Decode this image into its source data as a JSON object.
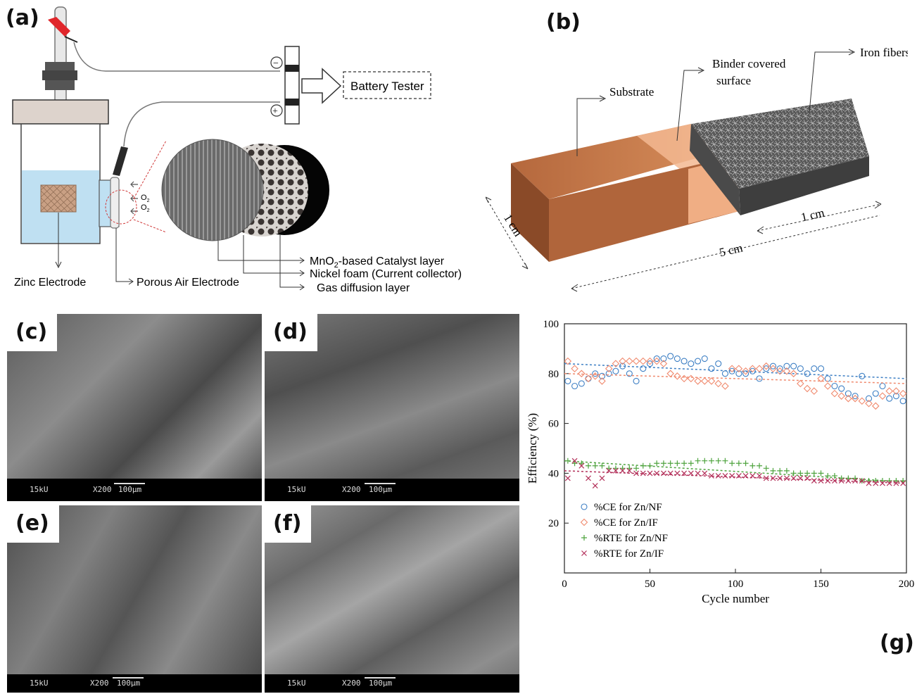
{
  "panels": {
    "a": "(a)",
    "b": "(b)",
    "c": "(c)",
    "d": "(d)",
    "e": "(e)",
    "f": "(f)",
    "g": "(g)"
  },
  "panel_a": {
    "battery_tester": "Battery Tester",
    "minus_sign": "−",
    "plus_sign": "+",
    "o2_top": "O",
    "o2_bottom": "O",
    "o2_sub": "2",
    "zinc_electrode": "Zinc Electrode",
    "porous_air_electrode": "Porous Air Electrode",
    "catalyst_layer_pre": "MnO",
    "catalyst_layer_sub": "2",
    "catalyst_layer_post": "-based Catalyst layer",
    "nickel_foam": "Nickel foam (Current collector)",
    "gas_diffusion": "Gas diffusion layer"
  },
  "panel_b": {
    "substrate": "Substrate",
    "binder_line1": "Binder covered",
    "binder_line2": "surface",
    "iron_fibers": "Iron fibers",
    "dim_1cm_left": "1 cm",
    "dim_1cm_right": "1 cm",
    "dim_5cm": "5 cm",
    "colors": {
      "substrate": "#b5683d",
      "binder": "#f3b892"
    }
  },
  "sem": {
    "kv": "15kU",
    "mag": "X200",
    "scale": "100µm"
  },
  "chart_data": {
    "type": "scatter",
    "xlabel": "Cycle number",
    "ylabel": "Efficiency (%)",
    "xlim": [
      0,
      200
    ],
    "ylim": [
      0,
      100
    ],
    "xticks": [
      0,
      50,
      100,
      150,
      200
    ],
    "yticks": [
      20,
      40,
      60,
      80,
      100
    ],
    "legend_position": "bottom-left",
    "series": [
      {
        "name": "%CE for Zn/NF",
        "marker": "circle",
        "color": "#3d7fc4",
        "x": [
          2,
          6,
          10,
          14,
          18,
          22,
          26,
          30,
          34,
          38,
          42,
          46,
          50,
          54,
          58,
          62,
          66,
          70,
          74,
          78,
          82,
          86,
          90,
          94,
          98,
          102,
          106,
          110,
          114,
          118,
          122,
          126,
          130,
          134,
          138,
          142,
          146,
          150,
          154,
          158,
          162,
          166,
          170,
          174,
          178,
          182,
          186,
          190,
          194,
          198
        ],
        "y": [
          77,
          75,
          76,
          78,
          80,
          79,
          80,
          81,
          83,
          80,
          77,
          82,
          84,
          86,
          86,
          87,
          86,
          85,
          84,
          85,
          86,
          82,
          84,
          80,
          81,
          80,
          80,
          81,
          78,
          82,
          83,
          82,
          83,
          83,
          82,
          80,
          82,
          82,
          78,
          75,
          74,
          72,
          71,
          79,
          70,
          72,
          75,
          70,
          71,
          69
        ],
        "trend": [
          84,
          78
        ]
      },
      {
        "name": "%CE for Zn/IF",
        "marker": "diamond",
        "color": "#f08a6e",
        "x": [
          2,
          6,
          10,
          14,
          18,
          22,
          26,
          30,
          34,
          38,
          42,
          46,
          50,
          54,
          58,
          62,
          66,
          70,
          74,
          78,
          82,
          86,
          90,
          94,
          98,
          102,
          106,
          110,
          114,
          118,
          122,
          126,
          130,
          134,
          138,
          142,
          146,
          150,
          154,
          158,
          162,
          166,
          170,
          174,
          178,
          182,
          186,
          190,
          194,
          198
        ],
        "y": [
          85,
          82,
          80,
          78,
          79,
          77,
          82,
          84,
          85,
          85,
          85,
          85,
          85,
          85,
          84,
          80,
          79,
          78,
          78,
          77,
          77,
          77,
          76,
          75,
          82,
          82,
          81,
          82,
          82,
          83,
          82,
          81,
          81,
          80,
          76,
          74,
          73,
          78,
          75,
          72,
          71,
          70,
          70,
          69,
          68,
          67,
          71,
          73,
          73,
          72
        ],
        "trend": [
          80,
          76
        ]
      },
      {
        "name": "%RTE for Zn/NF",
        "marker": "plus",
        "color": "#4ea33e",
        "x": [
          2,
          6,
          10,
          14,
          18,
          22,
          26,
          30,
          34,
          38,
          42,
          46,
          50,
          54,
          58,
          62,
          66,
          70,
          74,
          78,
          82,
          86,
          90,
          94,
          98,
          102,
          106,
          110,
          114,
          118,
          122,
          126,
          130,
          134,
          138,
          142,
          146,
          150,
          154,
          158,
          162,
          166,
          170,
          174,
          178,
          182,
          186,
          190,
          194,
          198
        ],
        "y": [
          45,
          44,
          44,
          43,
          43,
          43,
          42,
          42,
          42,
          42,
          42,
          43,
          43,
          44,
          44,
          44,
          44,
          44,
          44,
          45,
          45,
          45,
          45,
          45,
          44,
          44,
          44,
          43,
          43,
          42,
          41,
          41,
          41,
          40,
          40,
          40,
          40,
          40,
          39,
          39,
          38,
          38,
          38,
          37,
          37,
          37,
          37,
          37,
          37,
          37
        ],
        "trend": [
          45,
          36.5
        ]
      },
      {
        "name": "%RTE for Zn/IF",
        "marker": "cross",
        "color": "#b3305a",
        "x": [
          2,
          6,
          10,
          14,
          18,
          22,
          26,
          30,
          34,
          38,
          42,
          46,
          50,
          54,
          58,
          62,
          66,
          70,
          74,
          78,
          82,
          86,
          90,
          94,
          98,
          102,
          106,
          110,
          114,
          118,
          122,
          126,
          130,
          134,
          138,
          142,
          146,
          150,
          154,
          158,
          162,
          166,
          170,
          174,
          178,
          182,
          186,
          190,
          194,
          198
        ],
        "y": [
          38,
          45,
          43,
          38,
          35,
          38,
          41,
          41,
          41,
          41,
          40,
          40,
          40,
          40,
          40,
          40,
          40,
          40,
          40,
          40,
          40,
          39,
          39,
          39,
          39,
          39,
          39,
          39,
          39,
          38,
          38,
          38,
          38,
          38,
          38,
          38,
          37,
          37,
          37,
          37,
          37,
          37,
          37,
          37,
          36,
          36,
          36,
          36,
          36,
          36
        ],
        "trend": [
          41,
          36
        ]
      }
    ]
  }
}
